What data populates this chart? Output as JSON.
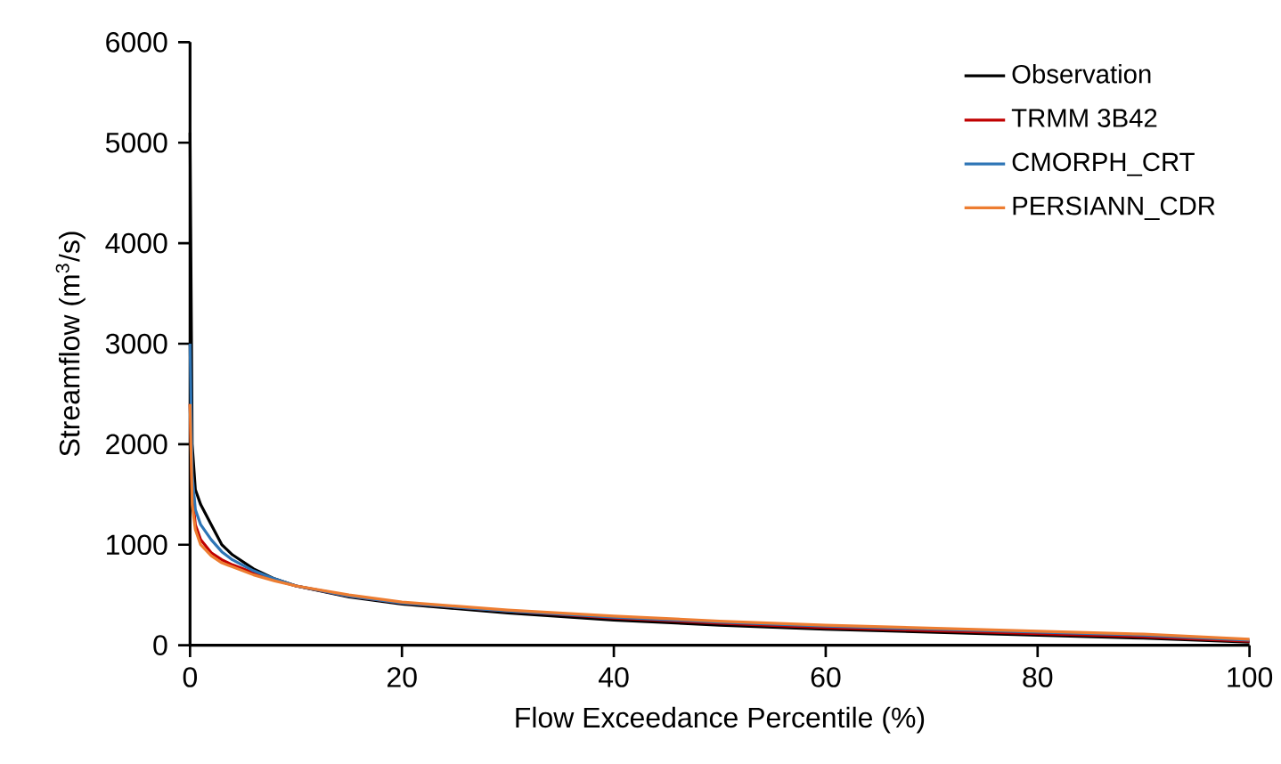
{
  "chart_data": {
    "type": "line",
    "xlabel": "Flow Exceedance Percentile (%)",
    "ylabel": "Streamflow (m$^{3}$/s)",
    "x": [
      0,
      0.2,
      0.5,
      1,
      2,
      3,
      4,
      6,
      8,
      10,
      15,
      20,
      30,
      40,
      50,
      60,
      70,
      80,
      90,
      100
    ],
    "series": [
      {
        "name": "Observation",
        "color": "#000000",
        "values": [
          5100,
          2000,
          1550,
          1400,
          1200,
          1000,
          900,
          760,
          660,
          590,
          480,
          410,
          320,
          250,
          200,
          160,
          130,
          100,
          70,
          30
        ]
      },
      {
        "name": "TRMM 3B42",
        "color": "#c00000",
        "values": [
          2400,
          1500,
          1200,
          1050,
          920,
          850,
          800,
          720,
          650,
          590,
          490,
          420,
          340,
          270,
          220,
          175,
          145,
          115,
          85,
          40
        ]
      },
      {
        "name": "CMORPH_CRT",
        "color": "#2e75b6",
        "values": [
          3000,
          1700,
          1350,
          1200,
          1050,
          930,
          850,
          740,
          660,
          590,
          490,
          420,
          340,
          280,
          230,
          190,
          160,
          130,
          100,
          50
        ]
      },
      {
        "name": "PERSIANN_CDR",
        "color": "#ed7d31",
        "values": [
          2400,
          1400,
          1150,
          1000,
          890,
          820,
          780,
          700,
          640,
          590,
          500,
          430,
          350,
          290,
          240,
          200,
          170,
          140,
          110,
          60
        ]
      }
    ],
    "xlim": [
      0,
      100
    ],
    "ylim": [
      0,
      6000
    ],
    "xticks": [
      0,
      20,
      40,
      60,
      80,
      100
    ],
    "yticks": [
      0,
      1000,
      2000,
      3000,
      4000,
      5000,
      6000
    ],
    "grid": false,
    "legend": "top right",
    "marker": "none",
    "line_style": "solid"
  }
}
